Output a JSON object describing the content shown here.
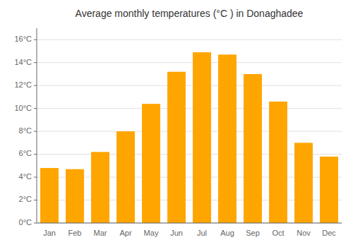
{
  "chart_data": {
    "type": "bar",
    "title": "Average monthly temperatures (°C ) in Donaghadee",
    "categories": [
      "Jan",
      "Feb",
      "Mar",
      "Apr",
      "May",
      "Jun",
      "Jul",
      "Aug",
      "Sep",
      "Oct",
      "Nov",
      "Dec"
    ],
    "values": [
      4.8,
      4.7,
      6.2,
      8.0,
      10.4,
      13.2,
      14.9,
      14.7,
      13.0,
      10.6,
      7.0,
      5.8
    ],
    "color": "#FFA500",
    "ylim": [
      0,
      17
    ],
    "yticks": [
      {
        "value": 0,
        "label": "0°C"
      },
      {
        "value": 2,
        "label": "2°C"
      },
      {
        "value": 4,
        "label": "4°C"
      },
      {
        "value": 6,
        "label": "6°C"
      },
      {
        "value": 8,
        "label": "8°C"
      },
      {
        "value": 10,
        "label": "10°C"
      },
      {
        "value": 12,
        "label": "12°C"
      },
      {
        "value": 14,
        "label": "14°C"
      },
      {
        "value": 16,
        "label": "16°C"
      }
    ],
    "grid": true
  }
}
